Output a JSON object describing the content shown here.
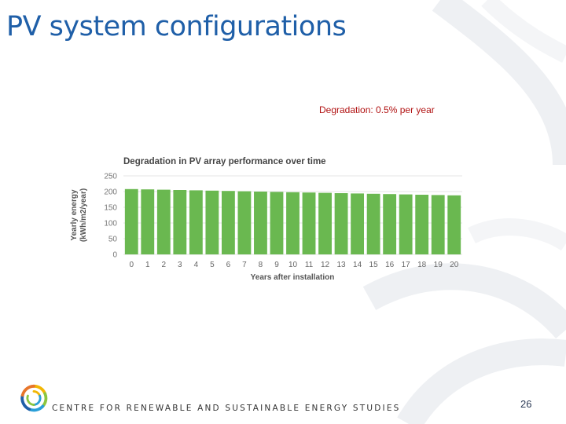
{
  "slide": {
    "title": "PV system configurations",
    "subtitle": "Degradation: 0.5% per year",
    "footer_text": "CENTRE FOR RENEWABLE AND SUSTAINABLE ENERGY STUDIES",
    "page_number": "26"
  },
  "chart_data": {
    "type": "bar",
    "title": "Degradation in PV array performance over time",
    "xlabel": "Years after installation",
    "ylabel": [
      "Yearly energy",
      "(kWh/m2/year)"
    ],
    "categories": [
      "0",
      "1",
      "2",
      "3",
      "4",
      "5",
      "6",
      "7",
      "8",
      "9",
      "10",
      "11",
      "12",
      "13",
      "14",
      "15",
      "16",
      "17",
      "18",
      "19",
      "20"
    ],
    "values": [
      208,
      207,
      206,
      205,
      204,
      203,
      202,
      201,
      200,
      199,
      198,
      197,
      196,
      195,
      194,
      193,
      192,
      191,
      190,
      189,
      188
    ],
    "ylim": [
      0,
      250
    ],
    "yticks": [
      "0",
      "50",
      "100",
      "150",
      "200",
      "250"
    ],
    "grid": true,
    "bar_color": "#6ab850"
  }
}
